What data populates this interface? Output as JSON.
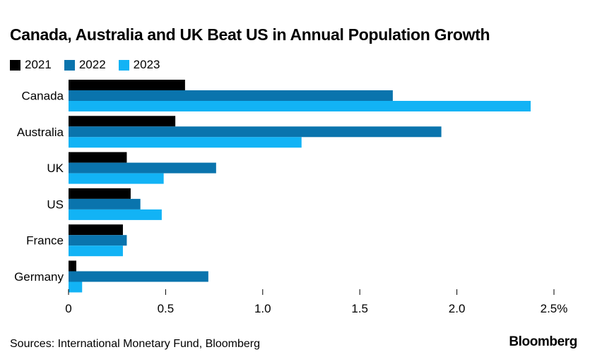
{
  "chart_data": {
    "type": "bar",
    "orientation": "horizontal",
    "title": "Canada, Australia and UK Beat US in Annual Population Growth",
    "categories": [
      "Canada",
      "Australia",
      "UK",
      "US",
      "France",
      "Germany"
    ],
    "series": [
      {
        "name": "2021",
        "color": "#000000",
        "values": [
          0.6,
          0.55,
          0.3,
          0.32,
          0.28,
          0.04
        ]
      },
      {
        "name": "2022",
        "color": "#0a74ad",
        "values": [
          1.67,
          1.92,
          0.76,
          0.37,
          0.3,
          0.72
        ]
      },
      {
        "name": "2023",
        "color": "#12b3f5",
        "values": [
          2.38,
          1.2,
          0.49,
          0.48,
          0.28,
          0.07
        ]
      }
    ],
    "x_ticks": [
      0,
      0.5,
      1.0,
      1.5,
      2.0,
      2.5
    ],
    "x_tick_labels": [
      "0",
      "0.5",
      "1.0",
      "1.5",
      "2.0",
      "2.5%"
    ],
    "xlim": [
      0,
      2.5
    ],
    "xlabel": "",
    "ylabel": "",
    "grid": false,
    "legend": "top-left"
  },
  "source": "Sources: International Monetary Fund, Bloomberg",
  "brand": "Bloomberg"
}
